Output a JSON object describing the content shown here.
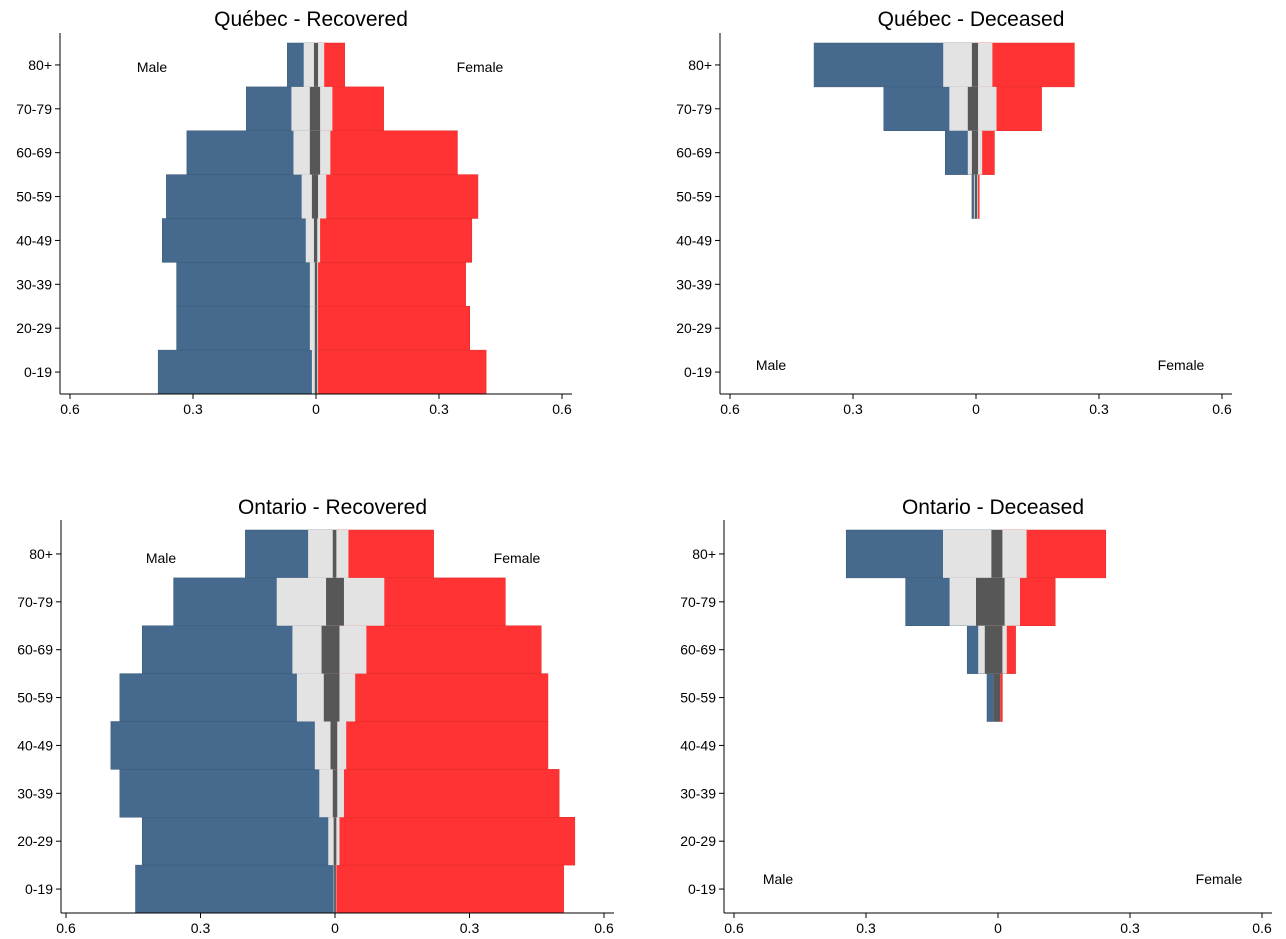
{
  "chart_data": [
    {
      "type": "bar",
      "title": "Québec - Recovered",
      "categories": [
        "80+",
        "70-79",
        "60-69",
        "50-59",
        "40-49",
        "30-39",
        "20-29",
        "0-19"
      ],
      "xlim": [
        -0.6,
        0.6
      ],
      "xticks": [
        -0.6,
        -0.3,
        0,
        0.3,
        0.6
      ],
      "xtick_labels": [
        "0.6",
        "0.3",
        "0",
        "0.3",
        "0.6"
      ],
      "male_label": "Male",
      "female_label": "Female",
      "label_position": "top",
      "series": [
        {
          "values": [
            -0.07,
            -0.17,
            -0.315,
            -0.365,
            -0.375,
            -0.34,
            -0.34,
            -0.385
          ]
        },
        {
          "values": [
            0.07,
            0.165,
            0.345,
            0.395,
            0.38,
            0.365,
            0.375,
            0.415
          ]
        }
      ],
      "light_band": [
        [
          -0.03,
          0.02
        ],
        [
          -0.06,
          0.04
        ],
        [
          -0.055,
          0.035
        ],
        [
          -0.035,
          0.025
        ],
        [
          -0.025,
          0.01
        ],
        [
          -0.015,
          0.005
        ],
        [
          -0.015,
          0.005
        ],
        [
          -0.01,
          0.005
        ]
      ],
      "dark_band": [
        [
          -0.005,
          0.005
        ],
        [
          -0.015,
          0.01
        ],
        [
          -0.015,
          0.01
        ],
        [
          -0.01,
          0.005
        ],
        [
          -0.005,
          0.003
        ],
        [
          -0.003,
          0.003
        ],
        [
          -0.003,
          0.003
        ],
        [
          -0.003,
          0.003
        ]
      ],
      "colors": {
        "male": "#466a8e",
        "female": "#ff3333",
        "band_light": "#e3e3e3",
        "band_dark": "#575757"
      }
    },
    {
      "type": "bar",
      "title": "Québec - Deceased",
      "categories": [
        "80+",
        "70-79",
        "60-69",
        "50-59",
        "40-49",
        "30-39",
        "20-29",
        "0-19"
      ],
      "xlim": [
        -0.6,
        0.6
      ],
      "xticks": [
        -0.6,
        -0.3,
        0,
        0.3,
        0.6
      ],
      "xtick_labels": [
        "0.6",
        "0.3",
        "0",
        "0.3",
        "0.6"
      ],
      "male_label": "Male",
      "female_label": "Female",
      "label_position": "bottom",
      "series": [
        {
          "values": [
            -0.395,
            -0.225,
            -0.075,
            -0.01,
            0,
            0,
            0,
            0
          ]
        },
        {
          "values": [
            0.24,
            0.16,
            0.045,
            0.008,
            0,
            0,
            0,
            0
          ]
        }
      ],
      "light_band": [
        [
          -0.08,
          0.04
        ],
        [
          -0.065,
          0.05
        ],
        [
          -0.02,
          0.015
        ],
        [
          -0.005,
          0.005
        ],
        [
          0,
          0
        ],
        [
          0,
          0
        ],
        [
          0,
          0
        ],
        [
          0,
          0
        ]
      ],
      "dark_band": [
        [
          -0.01,
          0.005
        ],
        [
          -0.02,
          0.005
        ],
        [
          -0.01,
          0.005
        ],
        [
          -0.003,
          0.003
        ],
        [
          0,
          0
        ],
        [
          0,
          0
        ],
        [
          0,
          0
        ],
        [
          0,
          0
        ]
      ],
      "colors": {
        "male": "#466a8e",
        "female": "#ff3333",
        "band_light": "#e3e3e3",
        "band_dark": "#575757"
      }
    },
    {
      "type": "bar",
      "title": "Ontario - Recovered",
      "categories": [
        "80+",
        "70-79",
        "60-69",
        "50-59",
        "40-49",
        "30-39",
        "20-29",
        "0-19"
      ],
      "xlim": [
        -0.6,
        0.6
      ],
      "xticks": [
        -0.6,
        -0.3,
        0,
        0.3,
        0.6
      ],
      "xtick_labels": [
        "0.6",
        "0.3",
        "0",
        "0.3",
        "0.6"
      ],
      "male_label": "Male",
      "female_label": "Female",
      "label_position": "top",
      "series": [
        {
          "values": [
            -0.2,
            -0.36,
            -0.43,
            -0.48,
            -0.5,
            -0.48,
            -0.43,
            -0.445
          ]
        },
        {
          "values": [
            0.22,
            0.38,
            0.46,
            0.475,
            0.475,
            0.5,
            0.535,
            0.51
          ]
        }
      ],
      "light_band": [
        [
          -0.06,
          0.03
        ],
        [
          -0.13,
          0.11
        ],
        [
          -0.095,
          0.07
        ],
        [
          -0.085,
          0.045
        ],
        [
          -0.045,
          0.025
        ],
        [
          -0.035,
          0.02
        ],
        [
          -0.015,
          0.01
        ],
        [
          -0.003,
          0.003
        ]
      ],
      "dark_band": [
        [
          -0.005,
          0.003
        ],
        [
          -0.02,
          0.02
        ],
        [
          -0.03,
          0.01
        ],
        [
          -0.025,
          0.01
        ],
        [
          -0.01,
          0.005
        ],
        [
          -0.005,
          0.005
        ],
        [
          -0.003,
          0.003
        ],
        [
          -0.002,
          0.002
        ]
      ],
      "colors": {
        "male": "#466a8e",
        "female": "#ff3333",
        "band_light": "#e3e3e3",
        "band_dark": "#575757"
      }
    },
    {
      "type": "bar",
      "title": "Ontario - Deceased",
      "categories": [
        "80+",
        "70-79",
        "60-69",
        "50-59",
        "40-49",
        "30-39",
        "20-29",
        "0-19"
      ],
      "xlim": [
        -0.6,
        0.6
      ],
      "xticks": [
        -0.6,
        -0.3,
        0,
        0.3,
        0.6
      ],
      "xtick_labels": [
        "0.6",
        "0.3",
        "0",
        "0.3",
        "0.6"
      ],
      "male_label": "Male",
      "female_label": "Female",
      "label_position": "bottom",
      "series": [
        {
          "values": [
            -0.345,
            -0.21,
            -0.07,
            -0.025,
            0,
            0,
            0,
            0
          ]
        },
        {
          "values": [
            0.245,
            0.13,
            0.04,
            0.01,
            0,
            0,
            0,
            0
          ]
        }
      ],
      "light_band": [
        [
          -0.125,
          0.065
        ],
        [
          -0.11,
          0.05
        ],
        [
          -0.045,
          0.02
        ],
        [
          -0.01,
          0.005
        ],
        [
          0,
          0
        ],
        [
          0,
          0
        ],
        [
          0,
          0
        ],
        [
          0,
          0
        ]
      ],
      "dark_band": [
        [
          -0.015,
          0.01
        ],
        [
          -0.05,
          0.015
        ],
        [
          -0.03,
          0.01
        ],
        [
          -0.01,
          0.005
        ],
        [
          0,
          0
        ],
        [
          0,
          0
        ],
        [
          0,
          0
        ],
        [
          0,
          0
        ]
      ],
      "colors": {
        "male": "#466a8e",
        "female": "#ff3333",
        "band_light": "#e3e3e3",
        "band_dark": "#575757"
      }
    }
  ]
}
